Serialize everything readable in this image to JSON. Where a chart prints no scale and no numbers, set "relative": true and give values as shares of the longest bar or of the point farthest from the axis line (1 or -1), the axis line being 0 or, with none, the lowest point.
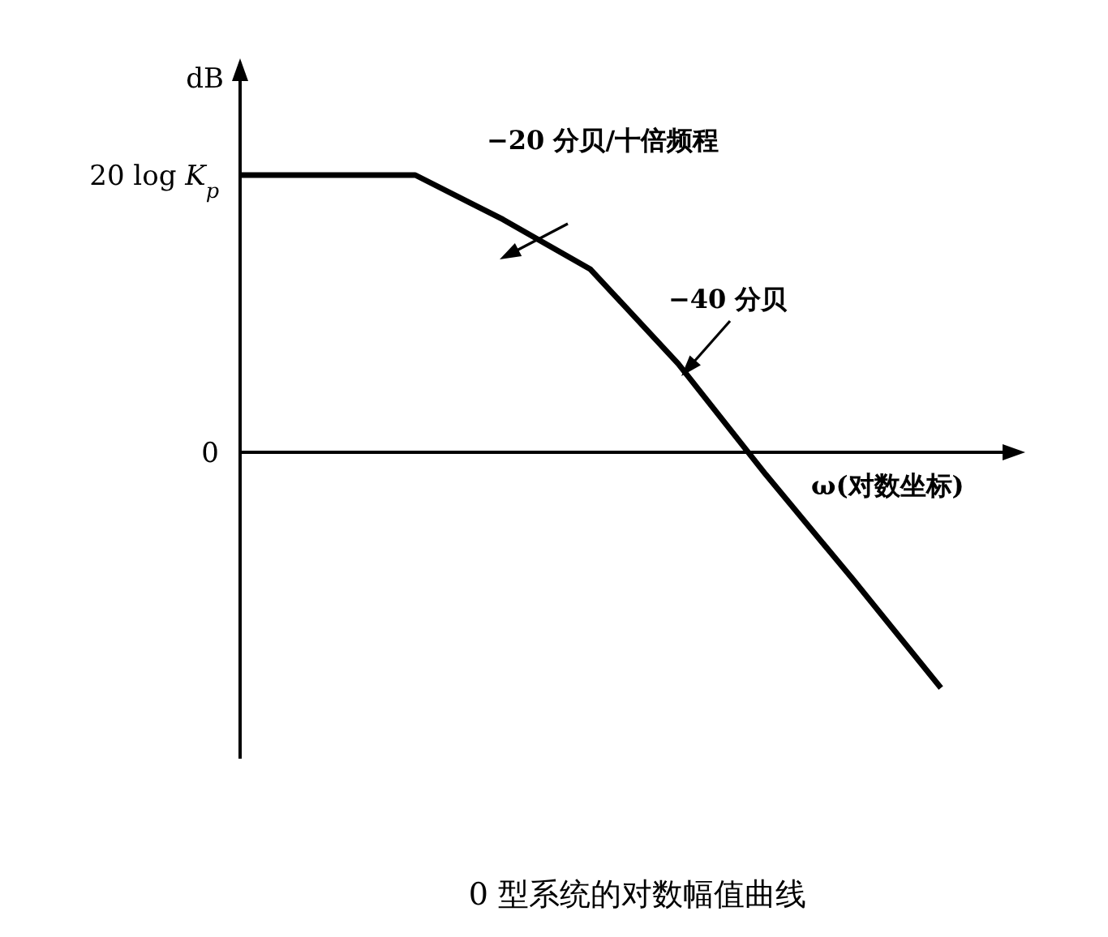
{
  "chart_data": {
    "type": "line",
    "relative": true,
    "title": "0 型系统的对数幅值曲线",
    "xlabel": "ω(对数坐标)",
    "ylabel": "dB",
    "categories": [
      null,
      null,
      null,
      null,
      null,
      null,
      null,
      null,
      null
    ],
    "series": [
      {
        "color": "#000000",
        "values": [
          1,
          1,
          1,
          0.84,
          0.66,
          0.32,
          -0.08,
          -0.46,
          -0.85
        ]
      }
    ],
    "annotations": [
      "20 log *K*$_{p}$",
      "0",
      "−20 分贝/十倍频程",
      "−40 分贝"
    ]
  }
}
